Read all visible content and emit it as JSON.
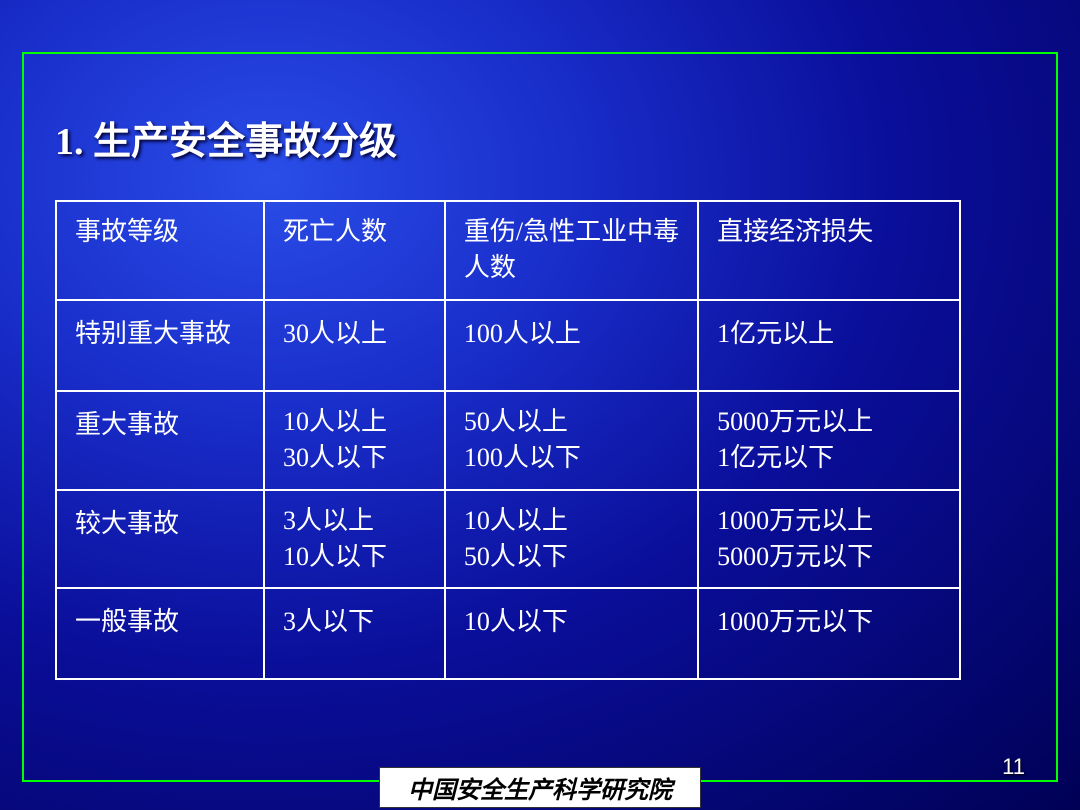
{
  "title": "1. 生产安全事故分级",
  "table": {
    "columns": [
      "事故等级",
      "死亡人数",
      "重伤/急性工业中毒人数",
      "直接经济损失"
    ],
    "col_widths": [
      "23%",
      "20%",
      "28%",
      "29%"
    ],
    "rows": [
      {
        "c1": "特别重大事故",
        "c2": "30人以上",
        "c3": "100人以上",
        "c4": "1亿元以上"
      },
      {
        "c1": "重大事故",
        "c2_l1": "10人以上",
        "c2_l2": "30人以下",
        "c3_l1": "50人以上",
        "c3_l2": "100人以下",
        "c4_l1": "5000万元以上",
        "c4_l2": "1亿元以下"
      },
      {
        "c1": "较大事故",
        "c2_l1": "3人以上",
        "c2_l2": "10人以下",
        "c3_l1": "10人以上",
        "c3_l2": "50人以下",
        "c4_l1": "1000万元以上",
        "c4_l2": "5000万元以下"
      },
      {
        "c1": "一般事故",
        "c2": "3人以下",
        "c3": "10人以下",
        "c4": "1000万元以下"
      }
    ]
  },
  "footer": "中国安全生产科学研究院",
  "page_number": "11",
  "colors": {
    "border": "#00ff00",
    "text": "#ffffff",
    "table_border": "#ffffff",
    "footer_bg": "#ffffff",
    "footer_text": "#000000"
  }
}
